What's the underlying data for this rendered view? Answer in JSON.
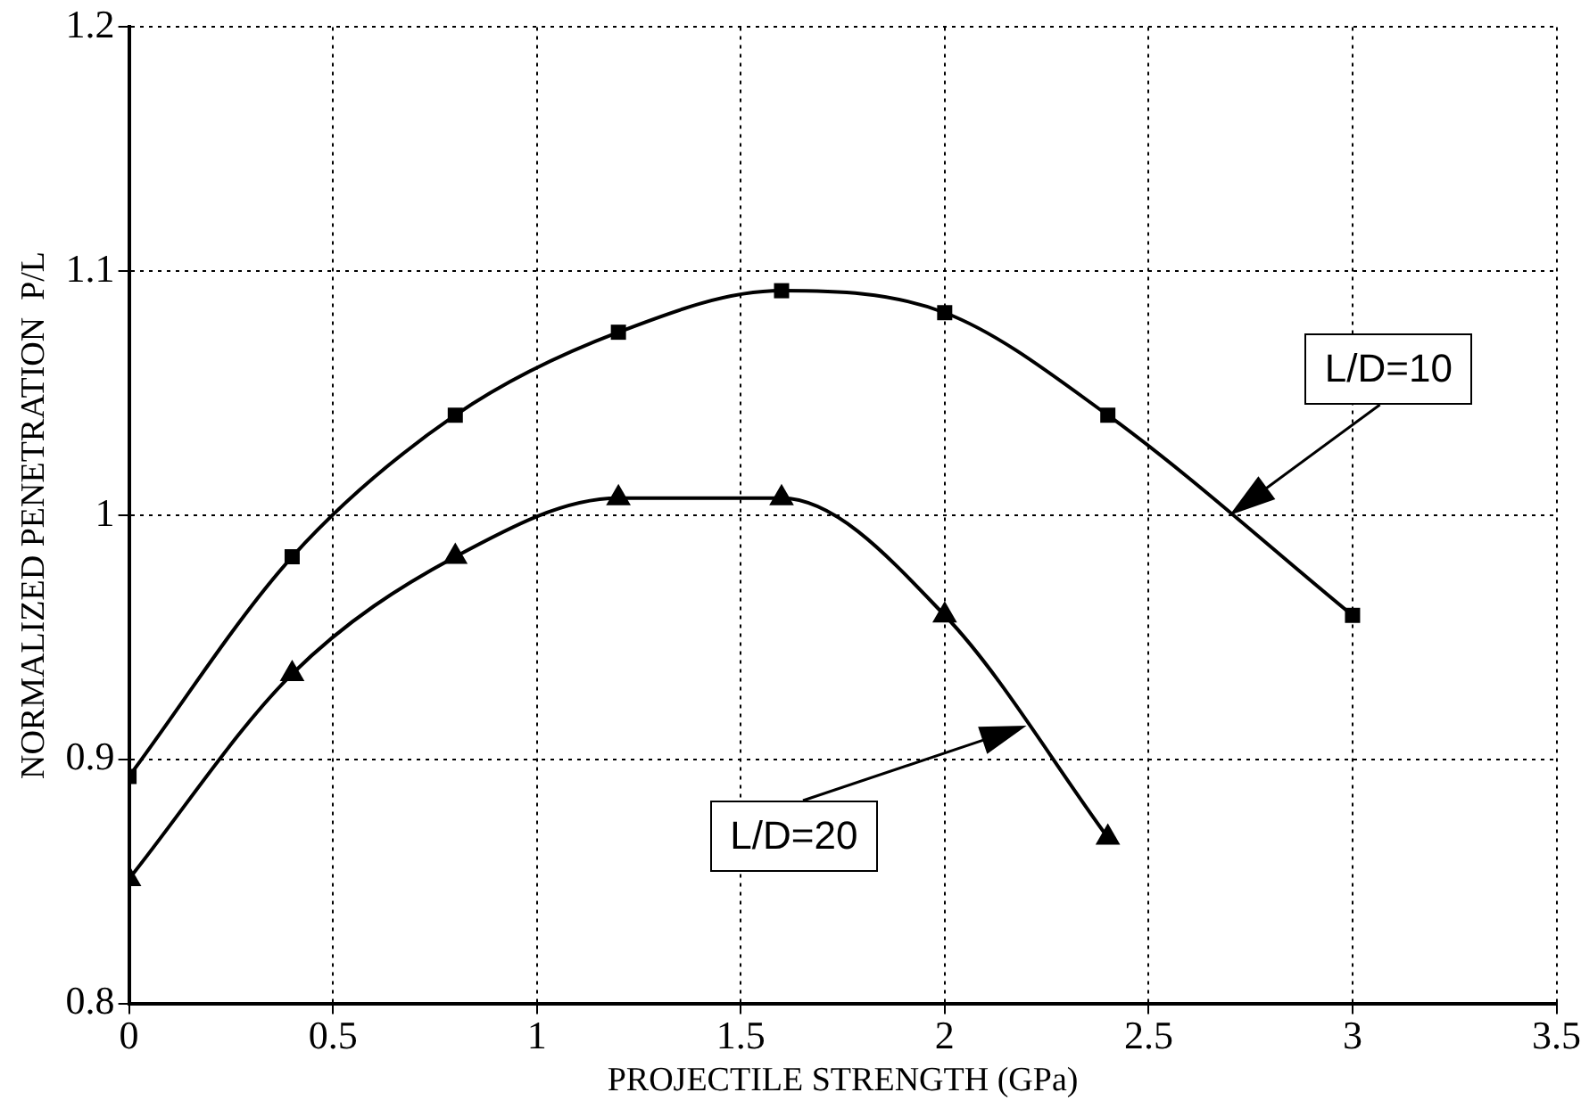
{
  "chart_data": {
    "type": "line",
    "xlabel": "PROJECTILE STRENGTH (GPa)",
    "ylabel": "NORMALIZED PENETRATION  P/L",
    "xlim": [
      0,
      3.5
    ],
    "xticks": [
      0,
      0.5,
      1,
      1.5,
      2,
      2.5,
      3,
      3.5
    ],
    "ylim": [
      0.8,
      1.2
    ],
    "yticks": [
      0.8,
      0.9,
      1,
      1.1,
      1.2
    ],
    "grid": true,
    "legend": false,
    "series": [
      {
        "name": "L/D=10",
        "color": "#000000",
        "marker": "square",
        "x": [
          0,
          0.4,
          0.8,
          1.2,
          1.6,
          2.0,
          2.4,
          3.0
        ],
        "values": [
          0.893,
          0.983,
          1.041,
          1.075,
          1.092,
          1.083,
          1.041,
          0.959
        ]
      },
      {
        "name": "L/D=20",
        "color": "#000000",
        "marker": "triangle",
        "x": [
          0,
          0.4,
          0.8,
          1.2,
          1.6,
          2.0,
          2.4
        ],
        "values": [
          0.851,
          0.935,
          0.983,
          1.007,
          1.007,
          0.959,
          0.868
        ]
      }
    ]
  }
}
